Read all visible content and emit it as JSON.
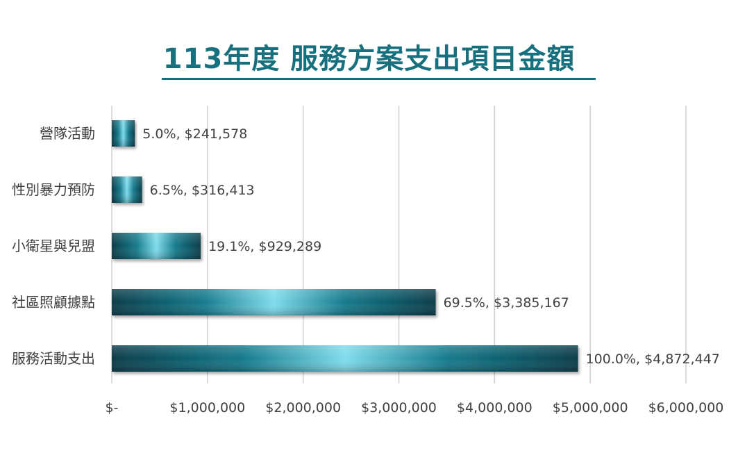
{
  "chart_data": {
    "type": "bar",
    "orientation": "horizontal",
    "title": "113年度 服務方案支出項目金額",
    "categories": [
      "營隊活動",
      "性別暴力預防",
      "小衛星與兒盟",
      "社區照顧據點",
      "服務活動支出"
    ],
    "values": [
      241578,
      316413,
      929289,
      3385167,
      4872447
    ],
    "data_labels": [
      "5.0%, $241,578",
      "6.5%, $316,413",
      "19.1%, $929,289",
      "69.5%, $3,385,167",
      "100.0%, $4,872,447"
    ],
    "xlim": [
      0,
      6000000
    ],
    "x_ticks": [
      0,
      1000000,
      2000000,
      3000000,
      4000000,
      5000000,
      6000000
    ],
    "x_tick_labels": [
      "$-",
      "$1,000,000",
      "$2,000,000",
      "$3,000,000",
      "$4,000,000",
      "$5,000,000",
      "$6,000,000"
    ],
    "grid": "vertical",
    "legend": "none",
    "colors": {
      "title": "#17707d",
      "bar_dark": "#0b3d4a",
      "bar_mid": "#147a8c",
      "bar_light": "#7fdcec",
      "grid": "#d0d0d0",
      "text": "#404040"
    }
  }
}
